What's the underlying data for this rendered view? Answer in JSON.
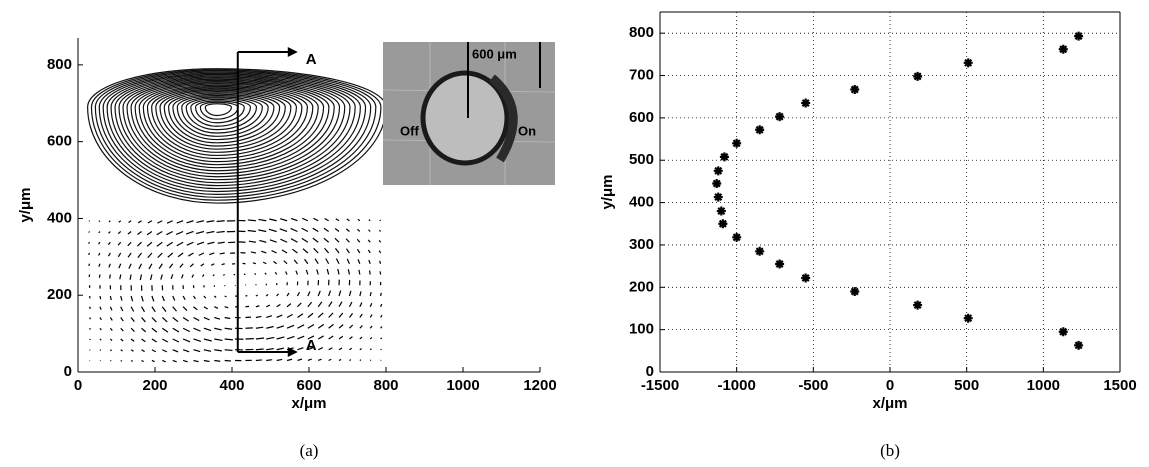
{
  "chart_data": [
    {
      "type": "vector",
      "x_label": "x/μm",
      "y_label": "y/μm",
      "xlim": [
        0,
        1200
      ],
      "xticks": [
        0,
        200,
        400,
        600,
        800,
        1000,
        1200
      ],
      "ylim": [
        0,
        870
      ],
      "yticks": [
        0,
        200,
        400,
        600,
        800
      ],
      "annotations": [
        "A",
        "A",
        "600 μm",
        "Off",
        "On"
      ],
      "caption": "(a)"
    },
    {
      "type": "scatter",
      "x_label": "x/μm",
      "y_label": "y/μm",
      "color": "#000000",
      "grid": true,
      "xlim": [
        -1500,
        1500
      ],
      "xticks": [
        -1500,
        -1000,
        -500,
        0,
        500,
        1000,
        1500
      ],
      "ylim": [
        0,
        850
      ],
      "yticks": [
        0,
        100,
        200,
        300,
        400,
        500,
        600,
        700,
        800
      ],
      "x": [
        1230,
        1130,
        510,
        180,
        -230,
        -550,
        -720,
        -850,
        -1000,
        -1080,
        -1120,
        -1130,
        -1120,
        -1100,
        -1090,
        -1000,
        -850,
        -720,
        -550,
        -230,
        180,
        510,
        1130,
        1230
      ],
      "y": [
        793,
        762,
        730,
        698,
        667,
        635,
        603,
        572,
        540,
        508,
        475,
        445,
        413,
        380,
        350,
        318,
        285,
        255,
        222,
        190,
        158,
        127,
        95,
        63
      ],
      "caption": "(b)"
    }
  ]
}
